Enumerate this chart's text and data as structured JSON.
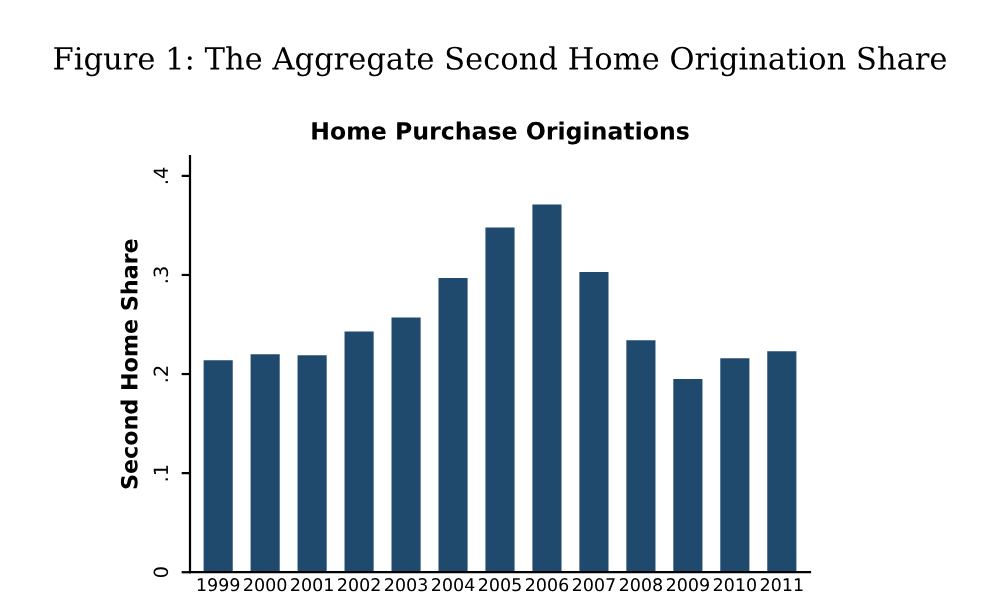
{
  "chart_data": {
    "type": "bar",
    "title": "Figure 1: The Aggregate Second Home Origination Share",
    "subtitle": "Home Purchase Originations",
    "ylabel": "Second Home Share",
    "categories": [
      "1999",
      "2000",
      "2001",
      "2002",
      "2003",
      "2004",
      "2005",
      "2006",
      "2007",
      "2008",
      "2009",
      "2010",
      "2011"
    ],
    "values": [
      0.214,
      0.22,
      0.219,
      0.243,
      0.257,
      0.297,
      0.348,
      0.371,
      0.303,
      0.234,
      0.195,
      0.216,
      0.223
    ],
    "color": "#1f4a6e",
    "ylim": [
      0,
      0.42
    ],
    "yticks": [
      0,
      {
        "value": 0.1,
        "label": ".1"
      },
      {
        "value": 0.2,
        "label": ".2"
      },
      {
        "value": 0.3,
        "label": ".3"
      },
      {
        "value": 0.4,
        "label": ".4"
      }
    ],
    "grid": false
  }
}
